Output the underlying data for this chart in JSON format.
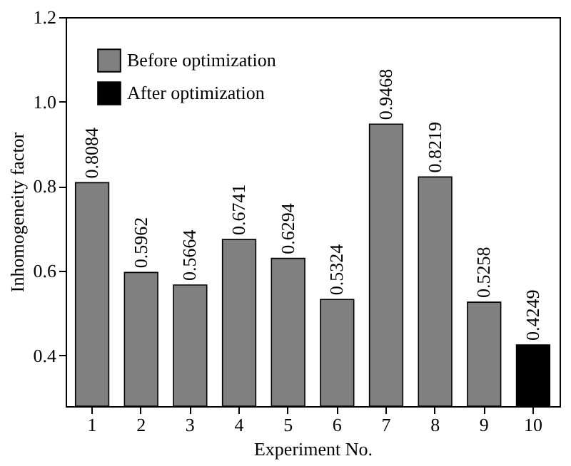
{
  "chart_data": {
    "type": "bar",
    "xlabel": "Experiment No.",
    "ylabel": "Inhomogeneity factor",
    "categories": [
      "1",
      "2",
      "3",
      "4",
      "5",
      "6",
      "7",
      "8",
      "9",
      "10"
    ],
    "series": [
      {
        "name": "Before optimization",
        "color": "#808080",
        "values": [
          0.8084,
          0.5962,
          0.5664,
          0.6741,
          0.6294,
          0.5324,
          0.9468,
          0.8219,
          0.5258,
          null
        ]
      },
      {
        "name": "After optimization",
        "color": "#000000",
        "values": [
          null,
          null,
          null,
          null,
          null,
          null,
          null,
          null,
          null,
          0.4249
        ]
      }
    ],
    "ylim": [
      0.28,
      1.2
    ],
    "yticks": [
      0.4,
      0.6,
      0.8,
      {
        "value": 1.0,
        "label": "1.0"
      },
      1.2
    ],
    "data_labels": true,
    "grid": false,
    "legend": "top left"
  }
}
